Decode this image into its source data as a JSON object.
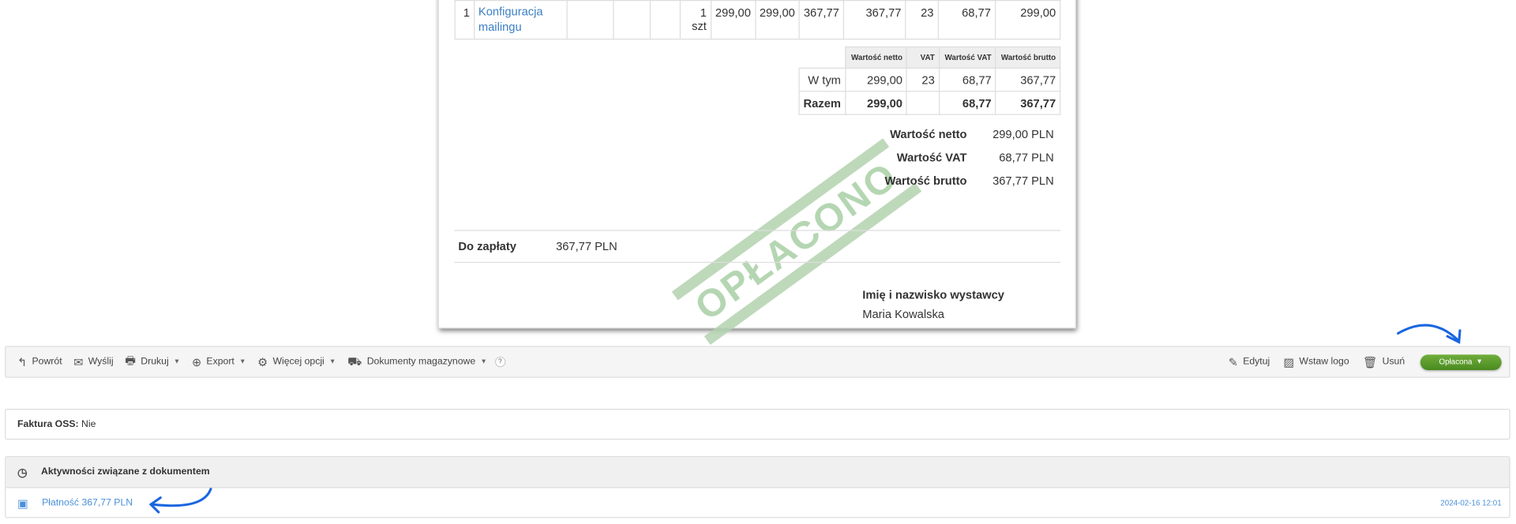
{
  "invoice": {
    "item_row": {
      "lp": "1",
      "name": "Konfiguracja mailingu",
      "c3": "",
      "c4": "",
      "c5": "",
      "qty": "1 szt",
      "net_price": "299,00",
      "net_value": "299,00",
      "gross_price": "367,77",
      "gross_value": "367,77",
      "vat_rate": "23",
      "vat_value": "68,77",
      "net_total": "299,00"
    },
    "summary_table": {
      "headers": [
        "Wartość netto",
        "VAT",
        "Wartość VAT",
        "Wartość brutto"
      ],
      "rows": [
        {
          "label": "W tym",
          "net": "299,00",
          "vat": "23",
          "vat_value": "68,77",
          "gross": "367,77"
        },
        {
          "label": "Razem",
          "net": "299,00",
          "vat": "",
          "vat_value": "68,77",
          "gross": "367,77"
        }
      ]
    },
    "totals": [
      {
        "label": "Wartość netto",
        "value": "299,00 PLN"
      },
      {
        "label": "Wartość VAT",
        "value": "68,77 PLN"
      },
      {
        "label": "Wartość brutto",
        "value": "367,77 PLN"
      }
    ],
    "to_pay_label": "Do zapłaty",
    "to_pay_value": "367,77 PLN",
    "issuer_label": "Imię i nazwisko wystawcy",
    "issuer_name": "Maria Kowalska",
    "stamp": "OPŁACONO",
    "stamp_color": "#a9cfa5"
  },
  "toolbar": {
    "back": "Powrót",
    "send": "Wyślij",
    "print": "Drukuj",
    "export": "Export",
    "more": "Więcej opcji",
    "warehouse": "Dokumenty magazynowe",
    "help": "?",
    "edit": "Edytuj",
    "insert_logo": "Wstaw logo",
    "delete": "Usuń",
    "status": "Opłacona",
    "status_color": "#5a9a2c"
  },
  "oss": {
    "label": "Faktura OSS:",
    "value": "Nie"
  },
  "activities": {
    "title": "Aktywności związane z dokumentem",
    "items": [
      {
        "text": "Płatność 367,77 PLN",
        "date": "2024-02-16 12:01"
      }
    ]
  },
  "annotation_color": "#1a66e0"
}
